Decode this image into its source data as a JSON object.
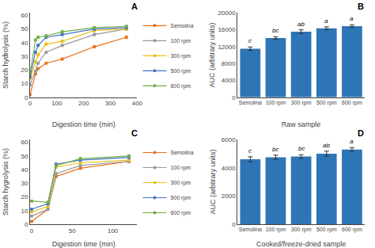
{
  "chart_data": [
    {
      "type": "line",
      "x": [
        0,
        20,
        30,
        60,
        120,
        240,
        360
      ],
      "series": [
        {
          "name": "Semolina",
          "color": "#e8701a",
          "values": [
            2,
            17,
            21,
            25,
            28,
            37,
            44
          ],
          "errors": [
            0.3,
            0.6,
            0.6,
            0.7,
            0.8,
            0.9,
            1.0
          ]
        },
        {
          "name": "100 rpm",
          "color": "#999999",
          "values": [
            9,
            19,
            25,
            33,
            38,
            46,
            50
          ],
          "errors": [
            0.3,
            0.5,
            0.6,
            0.7,
            0.8,
            0.9,
            0.9
          ]
        },
        {
          "name": "300 rpm",
          "color": "#e8c01a",
          "values": [
            14,
            26,
            31,
            39,
            41,
            49,
            50
          ],
          "errors": [
            0.4,
            0.6,
            0.7,
            0.8,
            0.9,
            0.9,
            0.9
          ]
        },
        {
          "name": "500 rpm",
          "color": "#4472c4",
          "values": [
            15,
            33,
            38,
            44,
            46,
            50,
            51
          ],
          "errors": [
            0.4,
            0.7,
            0.8,
            0.9,
            0.9,
            0.9,
            0.9
          ]
        },
        {
          "name": "600 rpm",
          "color": "#70ad47",
          "values": [
            17,
            42,
            44,
            45,
            48,
            51,
            52
          ],
          "errors": [
            0.5,
            0.8,
            0.9,
            0.9,
            0.9,
            0.9,
            0.9
          ]
        }
      ],
      "xlabel": "Digestion time (min)",
      "ylabel": "Starch hydrolysis (%)",
      "xlim": [
        0,
        400
      ],
      "xticks": [
        0,
        100,
        200,
        300,
        400
      ],
      "ylim": [
        0,
        62
      ],
      "yticks": [
        0,
        10,
        20,
        30,
        40,
        50,
        60
      ],
      "grid": false,
      "legend": "lower right",
      "marker": "circle",
      "annotations": [
        {
          "text": "A"
        }
      ]
    },
    {
      "type": "bar",
      "categories": [
        "Semolina",
        "100 rpm",
        "300 rpm",
        "500 rpm",
        "600 rpm"
      ],
      "values": [
        11500,
        14000,
        15500,
        16300,
        16800
      ],
      "errors": [
        400,
        300,
        450,
        350,
        300
      ],
      "color": "#2e75b6",
      "xlabel": "Raw sample",
      "ylabel": "AUC (arbitrary units)",
      "ylim": [
        0,
        20000
      ],
      "yticks": [
        0,
        4000,
        8000,
        12000,
        16000,
        20000
      ],
      "grid": false,
      "annotations": [
        {
          "text": "B"
        },
        {
          "text": "c",
          "x": "Semolina"
        },
        {
          "text": "bc",
          "x": "100 rpm"
        },
        {
          "text": "ab",
          "x": "300 rpm"
        },
        {
          "text": "a",
          "x": "500 rpm"
        },
        {
          "text": "a",
          "x": "600 rpm"
        }
      ]
    },
    {
      "type": "line",
      "x": [
        0,
        20,
        30,
        60,
        120
      ],
      "series": [
        {
          "name": "Semolina",
          "color": "#e8701a",
          "values": [
            2,
            11,
            35,
            41,
            46
          ],
          "errors": [
            0.3,
            0.5,
            0.8,
            0.9,
            0.9
          ]
        },
        {
          "name": "100 rpm",
          "color": "#999999",
          "values": [
            6,
            11,
            37,
            43,
            46
          ],
          "errors": [
            0.3,
            0.5,
            0.8,
            0.9,
            0.9
          ]
        },
        {
          "name": "300 rpm",
          "color": "#e8c01a",
          "values": [
            9,
            13,
            42,
            45,
            47
          ],
          "errors": [
            0.4,
            0.6,
            0.9,
            0.9,
            0.9
          ]
        },
        {
          "name": "500 rpm",
          "color": "#4472c4",
          "values": [
            11,
            15,
            44,
            47,
            49
          ],
          "errors": [
            0.4,
            0.7,
            0.9,
            0.9,
            0.9
          ]
        },
        {
          "name": "600 rpm",
          "color": "#70ad47",
          "values": [
            17,
            16,
            43,
            48,
            50
          ],
          "errors": [
            0.5,
            0.8,
            0.9,
            0.9,
            0.9
          ]
        }
      ],
      "xlabel": "Digestion time (min)",
      "ylabel": "Starch hygrolysis (%)",
      "xlim": [
        -2,
        130
      ],
      "xticks": [
        0,
        50,
        100
      ],
      "ylim": [
        0,
        62
      ],
      "yticks": [
        0,
        10,
        20,
        30,
        40,
        50,
        60
      ],
      "grid": false,
      "legend": "lower right",
      "marker": "circle",
      "annotations": [
        {
          "text": "C"
        }
      ]
    },
    {
      "type": "bar",
      "categories": [
        "Semolina",
        "100 rpm",
        "300 rpm",
        "500 rpm",
        "600 rpm"
      ],
      "values": [
        4600,
        4750,
        4800,
        5000,
        5300
      ],
      "errors": [
        180,
        150,
        130,
        180,
        130
      ],
      "color": "#2e75b6",
      "xlabel": "Cooked/freeze-dried sample",
      "ylabel": "AUC (arbitrary units)",
      "ylim": [
        0,
        6000
      ],
      "yticks": [
        0,
        2000,
        4000,
        6000
      ],
      "grid": false,
      "annotations": [
        {
          "text": "D"
        },
        {
          "text": "c",
          "x": "Semolina"
        },
        {
          "text": "bc",
          "x": "100 rpm"
        },
        {
          "text": "bc",
          "x": "300 rpm"
        },
        {
          "text": "ab",
          "x": "500 rpm"
        },
        {
          "text": "a",
          "x": "600 rpm"
        }
      ]
    }
  ]
}
